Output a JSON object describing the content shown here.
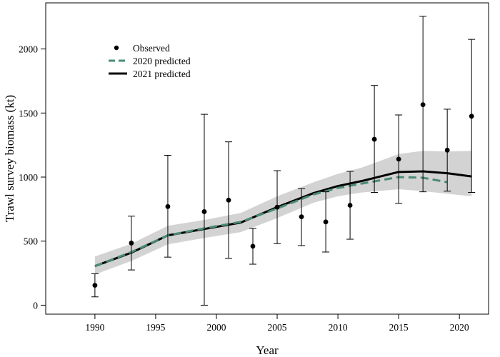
{
  "chart_data": {
    "type": "line",
    "xlabel": "Year",
    "ylabel": "Trawl survey biomass (kt)",
    "xlim": [
      1985.9,
      1990.0
    ],
    "xlim_full": [
      1985.95,
      2022.4
    ],
    "ylim": [
      -70,
      2360
    ],
    "xticks": [
      1990,
      1995,
      2000,
      2005,
      2010,
      2015,
      2020
    ],
    "yticks": [
      0,
      500,
      1000,
      1500,
      2000
    ],
    "legend": {
      "position": "top-left",
      "entries": [
        "Observed",
        "2020 predicted",
        "2021 predicted"
      ]
    },
    "observed": {
      "name": "Observed",
      "x": [
        1990,
        1993,
        1996,
        1999,
        2001,
        2003,
        2005,
        2007,
        2009,
        2011,
        2013,
        2015,
        2017,
        2019,
        2021
      ],
      "y": [
        155,
        485,
        770,
        730,
        820,
        460,
        765,
        690,
        650,
        780,
        1295,
        1140,
        1565,
        1210,
        1475
      ],
      "lower": [
        65,
        275,
        375,
        0,
        365,
        320,
        480,
        465,
        415,
        515,
        880,
        795,
        885,
        890,
        880
      ],
      "upper": [
        245,
        695,
        1170,
        1490,
        1275,
        600,
        1050,
        910,
        885,
        1045,
        1715,
        1485,
        2255,
        1530,
        2075
      ]
    },
    "series": [
      {
        "name": "2020 predicted",
        "color": "#4a8b78",
        "style": "dashed",
        "x": [
          1990,
          1993,
          1996,
          1999,
          2002,
          2005,
          2008,
          2010,
          2012,
          2015,
          2017,
          2019
        ],
        "y": [
          305,
          415,
          545,
          600,
          650,
          755,
          865,
          915,
          950,
          1000,
          995,
          960
        ]
      },
      {
        "name": "2021 predicted",
        "color": "#000000",
        "style": "solid",
        "x": [
          1990,
          1993,
          1996,
          1999,
          2002,
          2005,
          2008,
          2010,
          2012,
          2015,
          2017,
          2019,
          2021
        ],
        "y": [
          305,
          410,
          545,
          595,
          645,
          765,
          875,
          930,
          970,
          1040,
          1045,
          1030,
          1005
        ],
        "ci_lower": [
          240,
          345,
          475,
          525,
          570,
          680,
          800,
          850,
          880,
          905,
          890,
          870,
          850
        ],
        "ci_upper": [
          380,
          480,
          620,
          665,
          720,
          850,
          960,
          1025,
          1075,
          1180,
          1205,
          1200,
          1205
        ]
      }
    ]
  }
}
